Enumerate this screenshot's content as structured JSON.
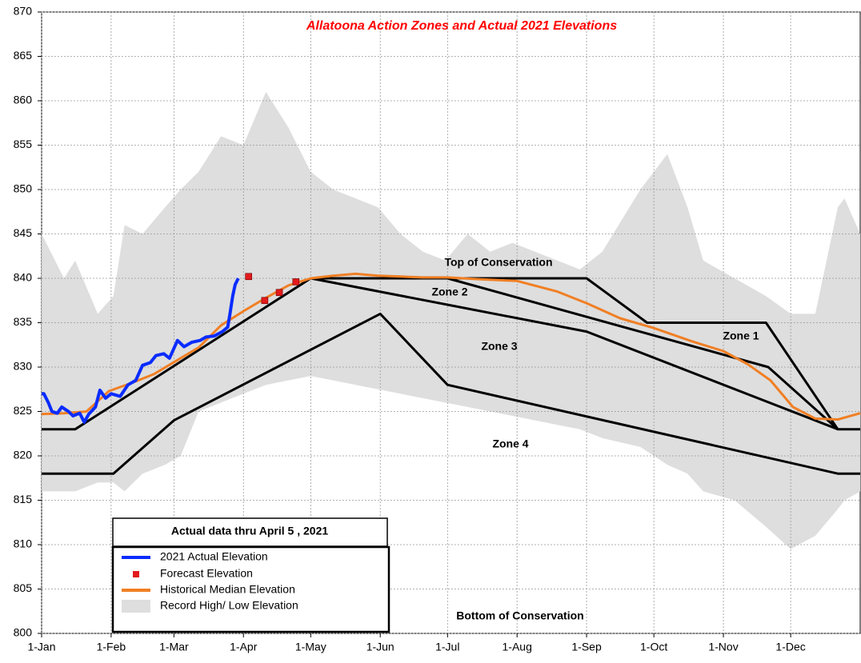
{
  "chart_data": {
    "type": "line",
    "title": "Allatoona Action Zones and Actual 2021 Elevations",
    "legend_title": "Actual data thru April 5 , 2021",
    "xlim": [
      0,
      365
    ],
    "ylim": [
      800,
      870
    ],
    "xticks": [
      {
        "value": 0,
        "label": "1-Jan"
      },
      {
        "value": 31,
        "label": "1-Feb"
      },
      {
        "value": 59,
        "label": "1-Mar"
      },
      {
        "value": 90,
        "label": "1-Apr"
      },
      {
        "value": 120,
        "label": "1-May"
      },
      {
        "value": 151,
        "label": "1-Jun"
      },
      {
        "value": 181,
        "label": "1-Jul"
      },
      {
        "value": 212,
        "label": "1-Aug"
      },
      {
        "value": 243,
        "label": "1-Sep"
      },
      {
        "value": 273,
        "label": "1-Oct"
      },
      {
        "value": 304,
        "label": "1-Nov"
      },
      {
        "value": 334,
        "label": "1-Dec"
      }
    ],
    "yticks": [
      800,
      805,
      810,
      815,
      820,
      825,
      830,
      835,
      840,
      845,
      850,
      855,
      860,
      865,
      870
    ],
    "grid": true,
    "series": [
      {
        "name": "2021 Actual Elevation",
        "type": "line",
        "color": "#0a2cff",
        "x": [
          0,
          1,
          3,
          4.6,
          7,
          9,
          12,
          14,
          17,
          19,
          21,
          24,
          26,
          28.5,
          31,
          35,
          38.5,
          42,
          45,
          48.5,
          51,
          54.5,
          57,
          60.6,
          63.5,
          67,
          70.6,
          73.4,
          77,
          80.6,
          83,
          84,
          85.2,
          86.3,
          87.7
        ],
        "values": [
          827,
          827,
          826,
          825,
          824.8,
          825.5,
          825,
          824.5,
          824.8,
          823.8,
          824.7,
          825.5,
          827.4,
          826.5,
          827,
          826.7,
          828,
          828.5,
          830.2,
          830.5,
          831.3,
          831.5,
          831,
          833,
          832.3,
          832.8,
          833,
          833.4,
          833.5,
          834,
          834.5,
          836,
          838,
          839.3,
          840
        ]
      },
      {
        "name": "Forecast Elevation",
        "type": "scatter",
        "color": "#e31a1c",
        "x": [
          92.3,
          99.5,
          106,
          113.4
        ],
        "values": [
          840.2,
          837.5,
          838.4,
          839.6
        ]
      },
      {
        "name": "Historical Median Elevation",
        "type": "line",
        "color": "#f07f24",
        "x": [
          0,
          10,
          20,
          30,
          40,
          50,
          60,
          70,
          80,
          90,
          100,
          110,
          120,
          130,
          140,
          150,
          160,
          170,
          181,
          195,
          212,
          230,
          243,
          258,
          273,
          290,
          304,
          315,
          325,
          335,
          345,
          355,
          365
        ],
        "values": [
          824.7,
          824.8,
          825,
          827.3,
          828.2,
          829.2,
          830.7,
          832.2,
          834.7,
          836.3,
          837.8,
          839.2,
          840,
          840.3,
          840.5,
          840.3,
          840.2,
          840.1,
          840.1,
          839.9,
          839.7,
          838.5,
          837.2,
          835.5,
          834.4,
          832.9,
          831.8,
          830.3,
          828.5,
          825.5,
          824.2,
          824.1,
          824.8
        ]
      },
      {
        "name": "Record High/ Low Elevation",
        "type": "area",
        "color": "#dedede",
        "x": [
          0,
          10,
          15,
          25,
          32,
          37,
          45,
          55,
          62,
          70,
          80,
          90,
          100,
          110,
          120,
          130,
          140,
          150,
          160,
          170,
          180,
          190,
          200,
          210,
          220,
          230,
          240,
          250,
          267,
          279,
          288,
          295,
          309,
          323,
          334,
          345,
          355,
          358,
          365
        ],
        "values": [
          845,
          840,
          842,
          836,
          838,
          846,
          845,
          848,
          850,
          852,
          856,
          855,
          861,
          857,
          852,
          850,
          849,
          848,
          845,
          843,
          842,
          845,
          843,
          844,
          843,
          842,
          841,
          843,
          850,
          854,
          848,
          842,
          840,
          838,
          836,
          836,
          848,
          849,
          845
        ],
        "low": [
          816,
          816,
          816,
          817,
          817,
          816,
          818,
          819,
          820,
          825,
          826,
          827,
          828,
          828.5,
          829,
          828.5,
          828,
          827.5,
          827,
          826.5,
          826,
          825.5,
          825,
          824.5,
          824,
          823.5,
          823,
          822,
          821,
          819,
          818,
          816,
          815,
          812,
          809.5,
          811,
          814,
          815,
          816
        ]
      }
    ],
    "zone_lines": [
      {
        "x": [
          0,
          15,
          120,
          243,
          270,
          323,
          355,
          365
        ],
        "values": [
          823,
          823,
          840,
          840,
          835,
          835,
          823,
          823
        ]
      },
      {
        "x": [
          181,
          324,
          355
        ],
        "values": [
          840,
          830,
          823
        ]
      },
      {
        "x": [
          120,
          243,
          355
        ],
        "values": [
          840,
          834,
          823
        ]
      },
      {
        "x": [
          0,
          32,
          59,
          151,
          181,
          355,
          365
        ],
        "values": [
          818,
          818,
          824,
          836,
          828,
          818,
          818
        ]
      }
    ],
    "annotations": [
      "Top of Conservation",
      "Zone 2",
      "Zone 3",
      "Zone 1",
      "Zone 4",
      "Bottom of Conservation"
    ]
  }
}
